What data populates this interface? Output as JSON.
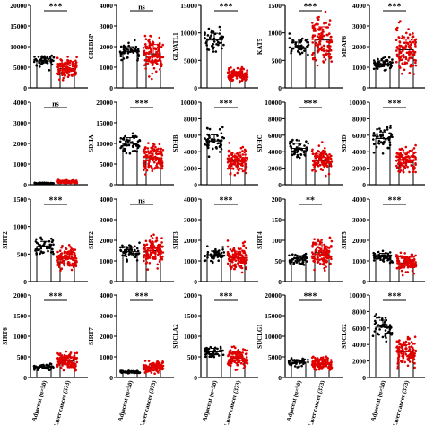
{
  "colors": {
    "adjacent": "#000000",
    "cancer": "#e00000",
    "bar_edge": "#000000",
    "error": "#e00000"
  },
  "x_category_labels": [
    "Adjacent (n=50)",
    "Liver cancer (373)"
  ],
  "chart_data": [
    {
      "type": "bar",
      "ylabel": "",
      "yticks": [
        0,
        5000,
        10000,
        15000,
        20000
      ],
      "ylim": [
        0,
        20000
      ],
      "categories": [
        "Adjacent (n=50)",
        "Liver cancer (373)"
      ],
      "values": [
        6500,
        4700
      ],
      "significance": "***"
    },
    {
      "type": "bar",
      "ylabel": "CREBBP",
      "yticks": [
        0,
        1000,
        2000,
        3000,
        4000
      ],
      "ylim": [
        0,
        4000
      ],
      "categories": [
        "Adjacent (n=50)",
        "Liver cancer (373)"
      ],
      "values": [
        1750,
        1650
      ],
      "significance": "ns"
    },
    {
      "type": "bar",
      "ylabel": "GLYATL1",
      "yticks": [
        0,
        5000,
        10000,
        15000
      ],
      "ylim": [
        0,
        15000
      ],
      "categories": [
        "Adjacent (n=50)",
        "Liver cancer (373)"
      ],
      "values": [
        8700,
        2300
      ],
      "significance": "***"
    },
    {
      "type": "bar",
      "ylabel": "KAT5",
      "yticks": [
        0,
        500,
        1000,
        1500
      ],
      "ylim": [
        0,
        1500
      ],
      "categories": [
        "Adjacent (n=50)",
        "Liver cancer (373)"
      ],
      "values": [
        730,
        870
      ],
      "significance": "***"
    },
    {
      "type": "bar",
      "ylabel": "MEAF6",
      "yticks": [
        0,
        1000,
        2000,
        3000,
        4000
      ],
      "ylim": [
        0,
        4000
      ],
      "categories": [
        "Adjacent (n=50)",
        "Liver cancer (373)"
      ],
      "values": [
        1150,
        1850
      ],
      "significance": "***"
    },
    {
      "type": "bar",
      "ylabel": "",
      "yticks": [
        0,
        1000,
        2000,
        3000,
        4000
      ],
      "ylim": [
        0,
        4000
      ],
      "categories": [
        "Adjacent (n=50)",
        "Liver cancer (373)"
      ],
      "values": [
        80,
        150
      ],
      "significance": "ns"
    },
    {
      "type": "bar",
      "ylabel": "SDHA",
      "yticks": [
        0,
        5000,
        10000,
        15000,
        20000
      ],
      "ylim": [
        0,
        20000
      ],
      "categories": [
        "Adjacent (n=50)",
        "Liver cancer (373)"
      ],
      "values": [
        10000,
        6500
      ],
      "significance": "***"
    },
    {
      "type": "bar",
      "ylabel": "SDHB",
      "yticks": [
        0,
        2000,
        4000,
        6000,
        8000,
        10000
      ],
      "ylim": [
        0,
        10000
      ],
      "categories": [
        "Adjacent (n=50)",
        "Liver cancer (373)"
      ],
      "values": [
        5300,
        2900
      ],
      "significance": "***"
    },
    {
      "type": "bar",
      "ylabel": "SDHC",
      "yticks": [
        0,
        2000,
        4000,
        6000,
        8000,
        10000
      ],
      "ylim": [
        0,
        10000
      ],
      "categories": [
        "Adjacent (n=50)",
        "Liver cancer (373)"
      ],
      "values": [
        4400,
        2900
      ],
      "significance": "***"
    },
    {
      "type": "bar",
      "ylabel": "SDHD",
      "yticks": [
        0,
        2000,
        4000,
        6000,
        8000,
        10000
      ],
      "ylim": [
        0,
        10000
      ],
      "categories": [
        "Adjacent (n=50)",
        "Liver cancer (373)"
      ],
      "values": [
        5600,
        3000
      ],
      "significance": "***"
    },
    {
      "type": "bar",
      "ylabel": "SIRT2",
      "yticks": [
        0,
        500,
        1000,
        1500
      ],
      "ylim": [
        0,
        1500
      ],
      "categories": [
        "Adjacent (n=50)",
        "Liver cancer (373)"
      ],
      "values": [
        640,
        420
      ],
      "significance": "***"
    },
    {
      "type": "bar",
      "ylabel": "SIRT2",
      "yticks": [
        0,
        1000,
        2000,
        3000,
        4000
      ],
      "ylim": [
        0,
        4000
      ],
      "categories": [
        "Adjacent (n=50)",
        "Liver cancer (373)"
      ],
      "values": [
        1450,
        1500
      ],
      "significance": "ns"
    },
    {
      "type": "bar",
      "ylabel": "SIRT3",
      "yticks": [
        0,
        1000,
        2000,
        3000,
        4000
      ],
      "ylim": [
        0,
        4000
      ],
      "categories": [
        "Adjacent (n=50)",
        "Liver cancer (373)"
      ],
      "values": [
        1300,
        1150
      ],
      "significance": "***"
    },
    {
      "type": "bar",
      "ylabel": "SIRT4",
      "yticks": [
        0,
        50,
        100,
        150,
        200
      ],
      "ylim": [
        0,
        200
      ],
      "categories": [
        "Adjacent (n=50)",
        "Liver cancer (373)"
      ],
      "values": [
        55,
        70
      ],
      "significance": "**"
    },
    {
      "type": "bar",
      "ylabel": "SIRT5",
      "yticks": [
        0,
        1000,
        2000,
        3000,
        4000
      ],
      "ylim": [
        0,
        4000
      ],
      "categories": [
        "Adjacent (n=50)",
        "Liver cancer (373)"
      ],
      "values": [
        1200,
        900
      ],
      "significance": "***"
    },
    {
      "type": "bar",
      "ylabel": "SIRT6",
      "yticks": [
        0,
        500,
        1000,
        1500,
        2000
      ],
      "ylim": [
        0,
        2000
      ],
      "categories": [
        "Adjacent (n=50)",
        "Liver cancer (373)"
      ],
      "values": [
        250,
        400
      ],
      "significance": "***"
    },
    {
      "type": "bar",
      "ylabel": "SIRT7",
      "yticks": [
        0,
        1000,
        2000,
        3000,
        4000
      ],
      "ylim": [
        0,
        4000
      ],
      "categories": [
        "Adjacent (n=50)",
        "Liver cancer (373)"
      ],
      "values": [
        270,
        520
      ],
      "significance": "***"
    },
    {
      "type": "bar",
      "ylabel": "SUCLA2",
      "yticks": [
        0,
        500,
        1000,
        1500,
        2000
      ],
      "ylim": [
        0,
        2000
      ],
      "categories": [
        "Adjacent (n=50)",
        "Liver cancer (373)"
      ],
      "values": [
        620,
        470
      ],
      "significance": "***"
    },
    {
      "type": "bar",
      "ylabel": "SUCLG1",
      "yticks": [
        0,
        5000,
        10000,
        15000,
        20000
      ],
      "ylim": [
        0,
        20000
      ],
      "categories": [
        "Adjacent (n=50)",
        "Liver cancer (373)"
      ],
      "values": [
        3700,
        3400
      ],
      "significance": "***"
    },
    {
      "type": "bar",
      "ylabel": "SUCLG2",
      "yticks": [
        0,
        2000,
        4000,
        6000,
        8000,
        10000
      ],
      "ylim": [
        0,
        10000
      ],
      "categories": [
        "Adjacent (n=50)",
        "Liver cancer (373)"
      ],
      "values": [
        6100,
        3100
      ],
      "significance": "***"
    }
  ]
}
